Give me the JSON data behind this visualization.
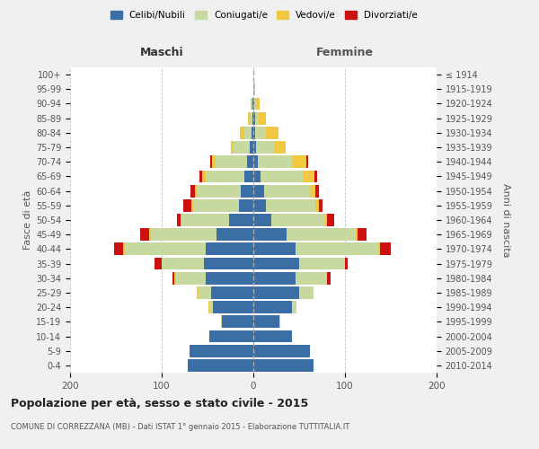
{
  "age_groups": [
    "0-4",
    "5-9",
    "10-14",
    "15-19",
    "20-24",
    "25-29",
    "30-34",
    "35-39",
    "40-44",
    "45-49",
    "50-54",
    "55-59",
    "60-64",
    "65-69",
    "70-74",
    "75-79",
    "80-84",
    "85-89",
    "90-94",
    "95-99",
    "100+"
  ],
  "birth_years": [
    "2010-2014",
    "2005-2009",
    "2000-2004",
    "1995-1999",
    "1990-1994",
    "1985-1989",
    "1980-1984",
    "1975-1979",
    "1970-1974",
    "1965-1969",
    "1960-1964",
    "1955-1959",
    "1950-1954",
    "1945-1949",
    "1940-1944",
    "1935-1939",
    "1930-1934",
    "1925-1929",
    "1920-1924",
    "1915-1919",
    "≤ 1914"
  ],
  "colors": {
    "celibi": "#3B6EA5",
    "coniugati": "#C8D9A0",
    "vedovi": "#F2C840",
    "divorziati": "#CC1111"
  },
  "maschi": {
    "celibi": [
      72,
      70,
      48,
      34,
      44,
      46,
      52,
      54,
      52,
      40,
      26,
      16,
      14,
      10,
      7,
      4,
      2,
      1,
      1,
      0,
      0
    ],
    "coniugati": [
      0,
      0,
      0,
      1,
      4,
      14,
      32,
      46,
      88,
      72,
      52,
      50,
      48,
      42,
      34,
      18,
      8,
      3,
      1,
      0,
      0
    ],
    "vedovi": [
      0,
      0,
      0,
      0,
      1,
      2,
      2,
      0,
      2,
      2,
      1,
      2,
      2,
      4,
      4,
      3,
      5,
      2,
      1,
      0,
      0
    ],
    "divorziati": [
      0,
      0,
      0,
      0,
      0,
      0,
      2,
      8,
      10,
      10,
      4,
      8,
      5,
      3,
      2,
      0,
      0,
      0,
      0,
      0,
      0
    ]
  },
  "femmine": {
    "celibi": [
      66,
      62,
      42,
      28,
      42,
      50,
      46,
      50,
      46,
      36,
      20,
      14,
      12,
      8,
      5,
      3,
      2,
      2,
      1,
      0,
      0
    ],
    "coniugati": [
      0,
      0,
      0,
      1,
      5,
      16,
      34,
      50,
      90,
      76,
      58,
      54,
      50,
      46,
      38,
      20,
      12,
      4,
      2,
      1,
      0
    ],
    "vedovi": [
      0,
      0,
      0,
      0,
      0,
      0,
      0,
      0,
      2,
      2,
      2,
      4,
      6,
      13,
      15,
      12,
      13,
      8,
      4,
      1,
      0
    ],
    "divorziati": [
      0,
      0,
      0,
      0,
      0,
      0,
      4,
      3,
      12,
      10,
      8,
      3,
      4,
      3,
      2,
      0,
      0,
      0,
      0,
      0,
      0
    ]
  },
  "xlim": 200,
  "title": "Popolazione per età, sesso e stato civile - 2015",
  "subtitle": "COMUNE DI CORREZZANA (MB) - Dati ISTAT 1° gennaio 2015 - Elaborazione TUTTITALIA.IT",
  "xlabel_left": "Maschi",
  "xlabel_right": "Femmine",
  "ylabel_left": "Fasce di età",
  "ylabel_right": "Anni di nascita",
  "bg_color": "#f0f0f0",
  "plot_bg": "#ffffff",
  "grid_color": "#bbbbbb"
}
